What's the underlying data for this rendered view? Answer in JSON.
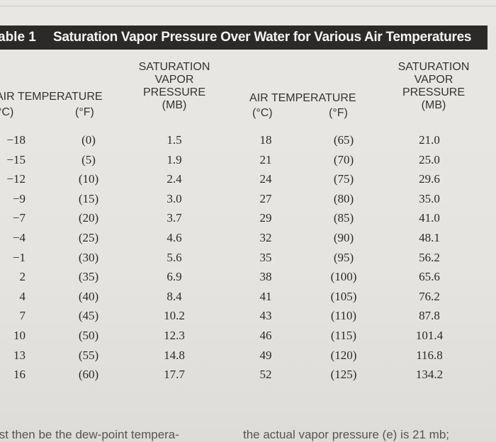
{
  "table": {
    "label": "able 1",
    "title": "Saturation Vapor Pressure Over Water for Various Air Temperatures",
    "headers": {
      "air_temperature_left": "AIR TEMPERATURE",
      "c_left": "°C)",
      "f_left": "(°F)",
      "svp_left": [
        "SATURATION",
        "VAPOR",
        "PRESSURE",
        "(MB)"
      ],
      "air_temperature_right": "AIR TEMPERATURE",
      "c_right": "(°C)",
      "f_right": "(°F)",
      "svp_right": [
        "SATURATION",
        "VAPOR",
        "PRESSURE",
        "(MB)"
      ]
    },
    "rows_left": [
      [
        "−18",
        "(0)",
        "1.5"
      ],
      [
        "−15",
        "(5)",
        "1.9"
      ],
      [
        "−12",
        "(10)",
        "2.4"
      ],
      [
        "−9",
        "(15)",
        "3.0"
      ],
      [
        "−7",
        "(20)",
        "3.7"
      ],
      [
        "−4",
        "(25)",
        "4.6"
      ],
      [
        "−1",
        "(30)",
        "5.6"
      ],
      [
        "2",
        "(35)",
        "6.9"
      ],
      [
        "4",
        "(40)",
        "8.4"
      ],
      [
        "7",
        "(45)",
        "10.2"
      ],
      [
        "10",
        "(50)",
        "12.3"
      ],
      [
        "13",
        "(55)",
        "14.8"
      ],
      [
        "16",
        "(60)",
        "17.7"
      ]
    ],
    "rows_right": [
      [
        "18",
        "(65)",
        "21.0"
      ],
      [
        "21",
        "(70)",
        "25.0"
      ],
      [
        "24",
        "(75)",
        "29.6"
      ],
      [
        "27",
        "(80)",
        "35.0"
      ],
      [
        "29",
        "(85)",
        "41.0"
      ],
      [
        "32",
        "(90)",
        "48.1"
      ],
      [
        "35",
        "(95)",
        "56.2"
      ],
      [
        "38",
        "(100)",
        "65.6"
      ],
      [
        "41",
        "(105)",
        "76.2"
      ],
      [
        "43",
        "(110)",
        "87.8"
      ],
      [
        "46",
        "(115)",
        "101.4"
      ],
      [
        "49",
        "(120)",
        "116.8"
      ],
      [
        "52",
        "(125)",
        "134.2"
      ]
    ]
  },
  "body_text": {
    "left": "ıst then be the dew-point tempera-",
    "right": "the actual vapor pressure (e) is 21 mb;"
  }
}
